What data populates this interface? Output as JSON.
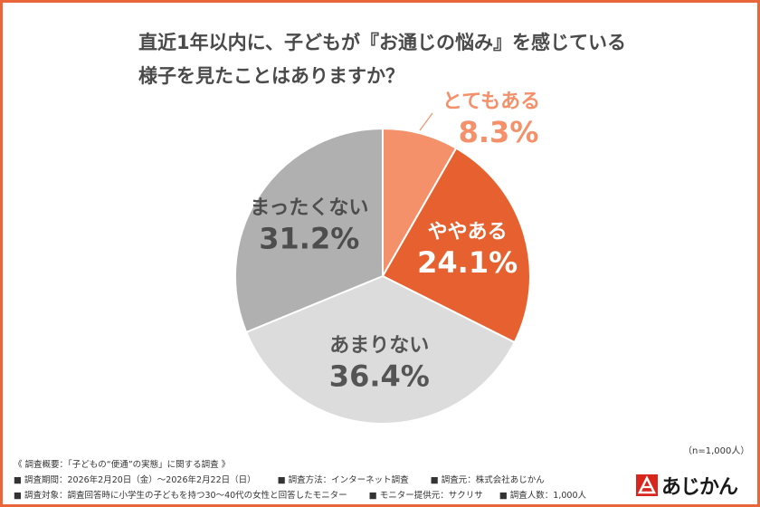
{
  "title": {
    "line1": "直近1年以内に、子どもが『お通じの悩み』を感じている",
    "line2": "様子を見たことはありますか？"
  },
  "chart_data": {
    "type": "pie",
    "title": "直近1年以内に、子どもが『お通じの悩み』を感じている様子を見たことはありますか？",
    "unit": "%",
    "start": "12 o'clock, clockwise",
    "slices": [
      {
        "label": "とてもある",
        "value": 8.3,
        "display": "8.3%",
        "color": "#f4906a",
        "text_color": "#f4906a",
        "label_outside": true
      },
      {
        "label": "ややある",
        "value": 24.1,
        "display": "24.1%",
        "color": "#e6612f",
        "text_color": "#ffffff",
        "label_outside": false
      },
      {
        "label": "あまりない",
        "value": 36.4,
        "display": "36.4%",
        "color": "#dcdcdc",
        "text_color": "#555555",
        "label_outside": false
      },
      {
        "label": "まったくない",
        "value": 31.2,
        "display": "31.2%",
        "color": "#b0b0b0",
        "text_color": "#4d4d4d",
        "label_outside": false
      }
    ],
    "sample_note": "（n=1,000人）"
  },
  "notes": {
    "heading": "《 調査概要：「子どもの“便通”の実態」に関する調査 》",
    "period": "■ 調査期間：2026年2月20日（金）〜2026年2月22日（日）",
    "method": "■ 調査方法：インターネット調査",
    "source": "■ 調査元：株式会社あじかん",
    "target": "■ 調査対象：調査回答時に小学生の子どもを持つ30〜40代の女性と回答したモニター",
    "provider": "■ モニター提供元：サクリサ",
    "count": "■ 調査人数：1,000人"
  },
  "logo": {
    "text": "あじかん",
    "color": "#d9261c"
  }
}
